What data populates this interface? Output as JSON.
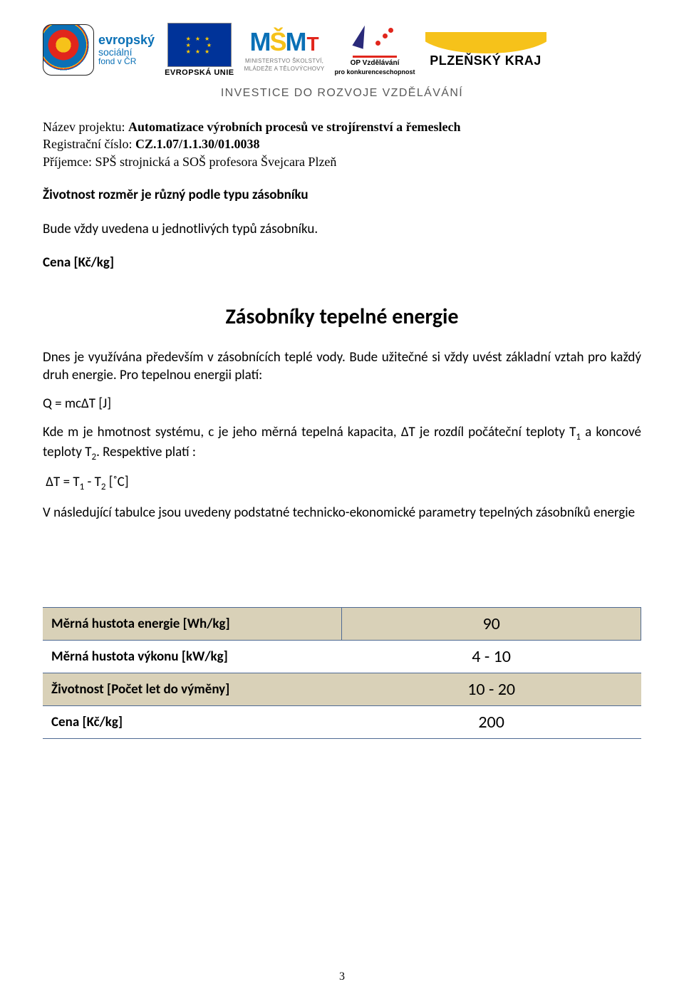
{
  "header": {
    "esf": {
      "line1": "evropský",
      "line2": "sociální",
      "line3": "fond v ČR"
    },
    "eu": {
      "label": "EVROPSKÁ UNIE"
    },
    "msmt": {
      "line1": "MINISTERSTVO ŠKOLSTVÍ,",
      "line2": "MLÁDEŽE A TĚLOVÝCHOVY"
    },
    "opv": {
      "line1": "OP Vzdělávání",
      "line2": "pro konkurenceschopnost"
    },
    "pk": {
      "label": "PLZEŇSKÝ KRAJ"
    },
    "investice": "INVESTICE DO ROZVOJE VZDĚLÁVÁNÍ"
  },
  "project": {
    "name_label": "Název projektu: ",
    "name": "Automatizace výrobních procesů ve strojírenství a řemeslech",
    "reg_label": "Registrační číslo: ",
    "reg": "CZ.1.07/1.1.30/01.0038",
    "recipient_label": "Příjemce: ",
    "recipient": "SPŠ strojnická a SOŠ profesora Švejcara Plzeň"
  },
  "text": {
    "zivotnost_line": "Životnost rozměr je různý podle typu zásobníku",
    "bude_line": "Bude vždy uvedena u jednotlivých typů zásobníku.",
    "cena_line": "Cena     [Kč/kg]",
    "section_title": "Zásobníky tepelné energie",
    "para1": "Dnes je využívána především v zásobnících teplé vody. Bude užitečné si vždy uvést základní vztah pro každý druh energie. Pro tepelnou energii platí:",
    "formula1": "Q = mcΔT           [J]",
    "para2a": "Kde m je hmotnost systému, c je jeho měrná tepelná kapacita, ΔT je rozdíl počáteční teploty T",
    "para2a_sub": "1",
    "para2b": " a koncové teploty T",
    "para2b_sub": "2",
    "para2c": ". Respektive platí :",
    "formula2_a": "ΔT = T",
    "formula2_s1": "1",
    "formula2_b": " - T",
    "formula2_s2": "2",
    "formula2_c": "        [˚C]",
    "para3": "V následující tabulce jsou uvedeny podstatné technicko-ekonomické parametry tepelných zásobníků energie"
  },
  "table": {
    "rows": [
      {
        "label": "Měrná hustota energie [Wh/kg]",
        "value": "90"
      },
      {
        "label": "Měrná hustota výkonu [kW/kg]",
        "value": "4 - 10"
      },
      {
        "label": "Životnost [Počet let do výměny]",
        "value": "10 - 20"
      },
      {
        "label": "Cena   [Kč/kg]",
        "value": "200"
      }
    ],
    "band_color": "#d9d1b8",
    "border_color": "#4f6a93"
  },
  "page_number": "3"
}
